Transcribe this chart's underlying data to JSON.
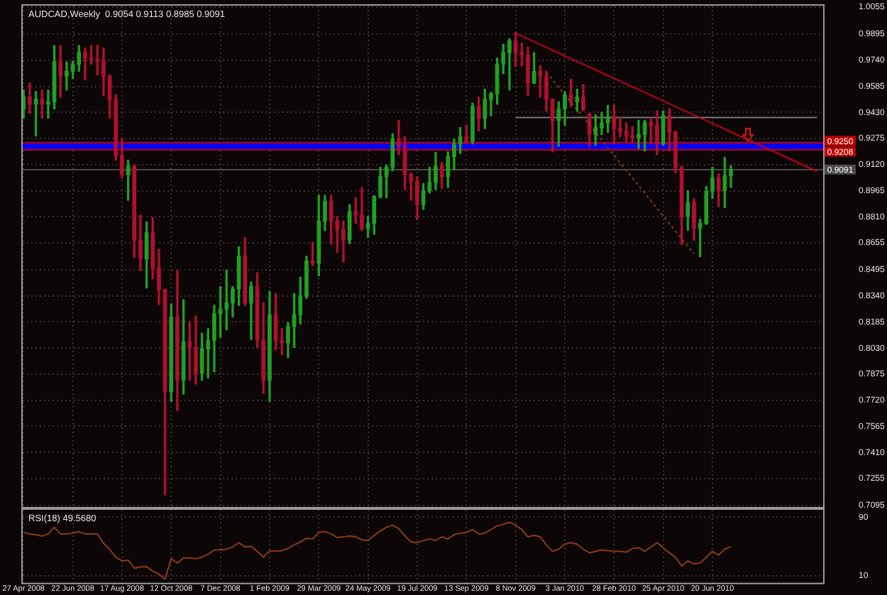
{
  "chart_data": [
    {
      "type": "candlestick",
      "title": "AUDCAD,Weekly  0.9054 0.9113 0.8985 0.9091",
      "series": [
        {
          "x": [
            "2008-04-27",
            "2008-05-04",
            "2008-05-11",
            "2008-05-18",
            "2008-05-25",
            "2008-06-01",
            "2008-06-08",
            "2008-06-15",
            "2008-06-22",
            "2008-06-29",
            "2008-07-06",
            "2008-07-13",
            "2008-07-20",
            "2008-07-27",
            "2008-08-03",
            "2008-08-10",
            "2008-08-17",
            "2008-08-24",
            "2008-08-31",
            "2008-09-07",
            "2008-09-14",
            "2008-09-21",
            "2008-09-28",
            "2008-10-05",
            "2008-10-12",
            "2008-10-19",
            "2008-10-26",
            "2008-11-02",
            "2008-11-09",
            "2008-11-16",
            "2008-11-23",
            "2008-11-30",
            "2008-12-07",
            "2008-12-14",
            "2008-12-21",
            "2008-12-28",
            "2009-01-04",
            "2009-01-11",
            "2009-01-18",
            "2009-01-25",
            "2009-02-01",
            "2009-02-08",
            "2009-02-15",
            "2009-02-22",
            "2009-03-01",
            "2009-03-08",
            "2009-03-15",
            "2009-03-22",
            "2009-03-29",
            "2009-04-05",
            "2009-04-12",
            "2009-04-19",
            "2009-04-26",
            "2009-05-03",
            "2009-05-10",
            "2009-05-17",
            "2009-05-24",
            "2009-05-31",
            "2009-06-07",
            "2009-06-14",
            "2009-06-21",
            "2009-06-28",
            "2009-07-05",
            "2009-07-12",
            "2009-07-19",
            "2009-07-26",
            "2009-08-02",
            "2009-08-09",
            "2009-08-16",
            "2009-08-23",
            "2009-08-30",
            "2009-09-06",
            "2009-09-13",
            "2009-09-20",
            "2009-09-27",
            "2009-10-04",
            "2009-10-11",
            "2009-10-18",
            "2009-10-25",
            "2009-11-01",
            "2009-11-08",
            "2009-11-15",
            "2009-11-22",
            "2009-11-29",
            "2009-12-06",
            "2009-12-13",
            "2009-12-20",
            "2009-12-27",
            "2010-01-03",
            "2010-01-10",
            "2010-01-17",
            "2010-01-24",
            "2010-01-31",
            "2010-02-07",
            "2010-02-14",
            "2010-02-21",
            "2010-02-28",
            "2010-03-07",
            "2010-03-14",
            "2010-03-21",
            "2010-03-28",
            "2010-04-04",
            "2010-04-11",
            "2010-04-18",
            "2010-04-25",
            "2010-05-02",
            "2010-05-09",
            "2010-05-16",
            "2010-05-23",
            "2010-05-30",
            "2010-06-06",
            "2010-06-13",
            "2010-06-20",
            "2010-06-27",
            "2010-07-04",
            "2010-07-11"
          ],
          "ohlc": [
            [
              0.9451,
              0.9563,
              0.9396,
              0.9521
            ],
            [
              0.9521,
              0.9604,
              0.9424,
              0.9479
            ],
            [
              0.9479,
              0.9554,
              0.929,
              0.9507
            ],
            [
              0.9507,
              0.9563,
              0.9396,
              0.9479
            ],
            [
              0.9479,
              0.9563,
              0.9396,
              0.9493
            ],
            [
              0.9493,
              0.9827,
              0.9451,
              0.9729
            ],
            [
              0.9729,
              0.9827,
              0.9521,
              0.9646
            ],
            [
              0.9646,
              0.9729,
              0.9563,
              0.9674
            ],
            [
              0.9674,
              0.9735,
              0.9632,
              0.9716
            ],
            [
              0.9716,
              0.9827,
              0.9674,
              0.9785
            ],
            [
              0.9785,
              0.9813,
              0.9624,
              0.9752
            ],
            [
              0.9752,
              0.9827,
              0.9716,
              0.9743
            ],
            [
              0.9743,
              0.9827,
              0.9652,
              0.9735
            ],
            [
              0.9735,
              0.9813,
              0.9529,
              0.9646
            ],
            [
              0.9646,
              0.9652,
              0.9396,
              0.9507
            ],
            [
              0.9507,
              0.9535,
              0.9146,
              0.9174
            ],
            [
              0.9174,
              0.9276,
              0.904,
              0.906
            ],
            [
              0.906,
              0.9146,
              0.8909,
              0.911
            ],
            [
              0.911,
              0.9118,
              0.857,
              0.8673
            ],
            [
              0.8673,
              0.882,
              0.8492,
              0.856
            ],
            [
              0.856,
              0.8779,
              0.8387,
              0.8715
            ],
            [
              0.8715,
              0.8806,
              0.8442,
              0.8506
            ],
            [
              0.8506,
              0.8617,
              0.8289,
              0.8376
            ],
            [
              0.8376,
              0.838,
              0.7158,
              0.777
            ],
            [
              0.777,
              0.8292,
              0.7714,
              0.8214
            ],
            [
              0.8214,
              0.8492,
              0.7659,
              0.7839
            ],
            [
              0.7839,
              0.8317,
              0.7756,
              0.8067
            ],
            [
              0.8067,
              0.8187,
              0.7839,
              0.8034
            ],
            [
              0.8034,
              0.822,
              0.7817,
              0.7881
            ],
            [
              0.7881,
              0.8117,
              0.7839,
              0.8026
            ],
            [
              0.8026,
              0.8145,
              0.7853,
              0.8076
            ],
            [
              0.8076,
              0.8284,
              0.7889,
              0.8234
            ],
            [
              0.8234,
              0.8395,
              0.8095,
              0.8262
            ],
            [
              0.8262,
              0.8492,
              0.8139,
              0.8298
            ],
            [
              0.8298,
              0.8395,
              0.8214,
              0.8381
            ],
            [
              0.8381,
              0.8631,
              0.8284,
              0.8576
            ],
            [
              0.8576,
              0.8687,
              0.8284,
              0.8298
            ],
            [
              0.8298,
              0.8423,
              0.8081,
              0.8395
            ],
            [
              0.8395,
              0.8478,
              0.8034,
              0.8076
            ],
            [
              0.8076,
              0.8298,
              0.7761,
              0.7839
            ],
            [
              0.7839,
              0.8367,
              0.7714,
              0.8228
            ],
            [
              0.8228,
              0.8353,
              0.802,
              0.8076
            ],
            [
              0.8076,
              0.8145,
              0.7992,
              0.8062
            ],
            [
              0.8062,
              0.8181,
              0.7973,
              0.8159
            ],
            [
              0.8159,
              0.8353,
              0.8034,
              0.8228
            ],
            [
              0.8228,
              0.8451,
              0.8173,
              0.8339
            ],
            [
              0.8339,
              0.8576,
              0.8326,
              0.8548
            ],
            [
              0.8548,
              0.8659,
              0.852,
              0.8534
            ],
            [
              0.8534,
              0.8937,
              0.8459,
              0.8784
            ],
            [
              0.8784,
              0.8937,
              0.8729,
              0.8901
            ],
            [
              0.8901,
              0.8937,
              0.8645,
              0.8784
            ],
            [
              0.8784,
              0.8812,
              0.8598,
              0.8734
            ],
            [
              0.8734,
              0.8784,
              0.8542,
              0.8673
            ],
            [
              0.8673,
              0.8882,
              0.8651,
              0.884
            ],
            [
              0.884,
              0.8923,
              0.877,
              0.882
            ],
            [
              0.882,
              0.8984,
              0.8729,
              0.874
            ],
            [
              0.874,
              0.8812,
              0.8687,
              0.877
            ],
            [
              0.877,
              0.8935,
              0.8706,
              0.893
            ],
            [
              0.893,
              0.9104,
              0.8923,
              0.9048
            ],
            [
              0.9048,
              0.9118,
              0.8923,
              0.9104
            ],
            [
              0.9104,
              0.9304,
              0.9084,
              0.9271
            ],
            [
              0.9271,
              0.9382,
              0.9179,
              0.9229
            ],
            [
              0.9229,
              0.9285,
              0.8972,
              0.906
            ],
            [
              0.906,
              0.9071,
              0.8909,
              0.9021
            ],
            [
              0.9021,
              0.9048,
              0.8793,
              0.8882
            ],
            [
              0.8882,
              0.9007,
              0.8854,
              0.8965
            ],
            [
              0.8965,
              0.9104,
              0.8951,
              0.9015
            ],
            [
              0.9015,
              0.9193,
              0.8972,
              0.911
            ],
            [
              0.911,
              0.9132,
              0.8979,
              0.9048
            ],
            [
              0.9048,
              0.9196,
              0.8984,
              0.9168
            ],
            [
              0.9168,
              0.9271,
              0.909,
              0.9243
            ],
            [
              0.9243,
              0.934,
              0.9187,
              0.9285
            ],
            [
              0.9285,
              0.9354,
              0.9243,
              0.9257
            ],
            [
              0.9257,
              0.9485,
              0.9243,
              0.9465
            ],
            [
              0.9465,
              0.9521,
              0.9321,
              0.9396
            ],
            [
              0.9396,
              0.9568,
              0.9335,
              0.9507
            ],
            [
              0.9507,
              0.9549,
              0.941,
              0.954
            ],
            [
              0.954,
              0.9752,
              0.9479,
              0.9716
            ],
            [
              0.9716,
              0.9835,
              0.966,
              0.9785
            ],
            [
              0.9785,
              0.9868,
              0.9563,
              0.9855
            ],
            [
              0.9855,
              0.9905,
              0.9702,
              0.9785
            ],
            [
              0.9785,
              0.9841,
              0.9707,
              0.9771
            ],
            [
              0.9771,
              0.9818,
              0.9529,
              0.9604
            ],
            [
              0.9604,
              0.9785,
              0.96,
              0.9674
            ],
            [
              0.9674,
              0.9707,
              0.9521,
              0.9646
            ],
            [
              0.9646,
              0.9674,
              0.9438,
              0.9507
            ],
            [
              0.9507,
              0.951,
              0.9196,
              0.9382
            ],
            [
              0.9382,
              0.9493,
              0.9229,
              0.9451
            ],
            [
              0.9451,
              0.9554,
              0.9354,
              0.9535
            ],
            [
              0.9535,
              0.9627,
              0.9465,
              0.9493
            ],
            [
              0.9493,
              0.9568,
              0.9438,
              0.9521
            ],
            [
              0.9521,
              0.9596,
              0.944,
              0.9446
            ],
            [
              0.942,
              0.9424,
              0.9229,
              0.9299
            ],
            [
              0.9299,
              0.9415,
              0.9235,
              0.934
            ],
            [
              0.934,
              0.9429,
              0.9299,
              0.9368
            ],
            [
              0.9368,
              0.9471,
              0.9312,
              0.9401
            ],
            [
              0.9401,
              0.9471,
              0.9243,
              0.9335
            ],
            [
              0.9335,
              0.9401,
              0.9285,
              0.9318
            ],
            [
              0.9318,
              0.9368,
              0.9257,
              0.929
            ],
            [
              0.929,
              0.9346,
              0.9257,
              0.9279
            ],
            [
              0.9279,
              0.9382,
              0.9215,
              0.93
            ],
            [
              0.93,
              0.9382,
              0.9201,
              0.9368
            ],
            [
              0.9368,
              0.9396,
              0.9243,
              0.9354
            ],
            [
              0.9354,
              0.9438,
              0.9179,
              0.9243
            ],
            [
              0.9243,
              0.9438,
              0.9235,
              0.941
            ],
            [
              0.941,
              0.9452,
              0.9202,
              0.9312
            ],
            [
              0.9312,
              0.9318,
              0.9071,
              0.91
            ],
            [
              0.91,
              0.911,
              0.8645,
              0.8812
            ],
            [
              0.8812,
              0.8965,
              0.873,
              0.8895
            ],
            [
              0.8895,
              0.8915,
              0.867,
              0.8743
            ],
            [
              0.8743,
              0.8795,
              0.8573,
              0.877
            ],
            [
              0.877,
              0.899,
              0.8765,
              0.896
            ],
            [
              0.896,
              0.9104,
              0.892,
              0.904
            ],
            [
              0.904,
              0.9065,
              0.887,
              0.8965
            ],
            [
              0.8965,
              0.9163,
              0.8865,
              0.9054
            ],
            [
              0.9054,
              0.9113,
              0.8985,
              0.9091
            ]
          ],
          "colors": [
            "#20a020",
            "#b01030",
            "#20a020",
            "#b01030",
            "#20a020",
            "#20a020",
            "#b01030",
            "#20a020",
            "#20a020",
            "#20a020",
            "#b01030",
            "#b01030",
            "#b01030",
            "#b01030",
            "#b01030",
            "#b01030",
            "#b01030",
            "#20a020",
            "#b01030",
            "#b01030",
            "#20a020",
            "#b01030",
            "#b01030",
            "#b01030",
            "#20a020",
            "#b01030",
            "#20a020",
            "#b01030",
            "#b01030",
            "#20a020",
            "#20a020",
            "#20a020",
            "#20a020",
            "#20a020",
            "#20a020",
            "#20a020",
            "#b01030",
            "#20a020",
            "#b01030",
            "#b01030",
            "#20a020",
            "#b01030",
            "#b01030",
            "#20a020",
            "#20a020",
            "#20a020",
            "#20a020",
            "#b01030",
            "#20a020",
            "#20a020",
            "#b01030",
            "#b01030",
            "#b01030",
            "#20a020",
            "#b01030",
            "#b01030",
            "#20a020",
            "#20a020",
            "#20a020",
            "#20a020",
            "#20a020",
            "#b01030",
            "#b01030",
            "#b01030",
            "#b01030",
            "#20a020",
            "#20a020",
            "#20a020",
            "#b01030",
            "#20a020",
            "#20a020",
            "#20a020",
            "#b01030",
            "#20a020",
            "#b01030",
            "#20a020",
            "#20a020",
            "#20a020",
            "#20a020",
            "#20a020",
            "#b01030",
            "#b01030",
            "#b01030",
            "#20a020",
            "#b01030",
            "#b01030",
            "#b01030",
            "#20a020",
            "#20a020",
            "#b01030",
            "#20a020",
            "#b01030",
            "#b01030",
            "#20a020",
            "#20a020",
            "#20a020",
            "#b01030",
            "#b01030",
            "#b01030",
            "#b01030",
            "#20a020",
            "#20a020",
            "#b01030",
            "#b01030",
            "#20a020",
            "#b01030",
            "#b01030",
            "#b01030",
            "#20a020",
            "#b01030",
            "#20a020",
            "#20a020",
            "#20a020",
            "#b01030",
            "#20a020",
            "#20a020"
          ]
        },
        {
          "type": "line",
          "x": [
            "2009-11-08",
            "2010-10-17"
          ],
          "values": [
            0.99,
            0.908
          ],
          "color": "#c00018"
        },
        {
          "type": "line",
          "x": [
            "2009-12-13",
            "2010-05-30"
          ],
          "values": [
            0.967,
            0.859
          ],
          "color": "#7a3a12",
          "line_style": "dotted"
        },
        {
          "type": "line",
          "x": [
            "2009-11-08",
            "2010-10-17"
          ],
          "values": [
            0.94,
            0.94
          ],
          "color": "#787878"
        }
      ],
      "xlim": [
        "2008-04-26",
        "2010-10-24"
      ],
      "xticks": [
        {
          "value": "2008-04-27",
          "label": null
        },
        {
          "value": "2008-06-22",
          "label": null
        },
        {
          "value": "2008-08-17",
          "label": null
        },
        {
          "value": "2008-10-12",
          "label": null
        },
        {
          "value": "2008-12-07",
          "label": null
        },
        {
          "value": "2009-02-01",
          "label": null
        },
        {
          "value": "2009-03-29",
          "label": null
        },
        {
          "value": "2009-05-24",
          "label": null
        },
        {
          "value": "2009-07-19",
          "label": null
        },
        {
          "value": "2009-09-13",
          "label": null
        },
        {
          "value": "2009-11-08",
          "label": null
        },
        {
          "value": "2010-01-03",
          "label": null
        },
        {
          "value": "2010-02-28",
          "label": null
        },
        {
          "value": "2010-04-25",
          "label": null
        },
        {
          "value": "2010-06-20",
          "label": null
        }
      ],
      "ylim": [
        0.7086,
        1.0064
      ],
      "yticks": [
        1.0055,
        0.9895,
        {
          "value": 0.974,
          "label": "0.9740"
        },
        0.9585,
        {
          "value": 0.943,
          "label": "0.9430"
        },
        0.9275,
        {
          "value": 0.912,
          "label": "0.9120"
        },
        0.8965,
        {
          "value": 0.881,
          "label": "0.8810"
        },
        0.8655,
        0.8495,
        {
          "value": 0.834,
          "label": "0.8340"
        },
        0.8185,
        {
          "value": 0.803,
          "label": "0.8030"
        },
        0.7875,
        {
          "value": 0.772,
          "label": "0.7720"
        },
        0.7565,
        {
          "value": 0.741,
          "label": "0.7410"
        },
        0.7255,
        0.7095
      ],
      "tick_labels": "y",
      "grid": true,
      "ref_lines": [
        {
          "axis": "y",
          "value": 0.925,
          "label": "0.9250",
          "color": "#c00000"
        },
        {
          "axis": "y",
          "value": 0.9208,
          "label": "0.9208",
          "color": "#c00000"
        },
        {
          "axis": "y",
          "value": 0.9091,
          "label": "0.9091",
          "color": "#4a4a4a"
        }
      ],
      "bands": [
        {
          "axis": "y",
          "from": 0.9208,
          "to": 0.925,
          "color": "#0000ff"
        }
      ]
    },
    {
      "type": "line",
      "title": "RSI(18) 49.5680",
      "series": [
        {
          "x": [
            "2008-04-27",
            "2008-05-04",
            "2008-05-11",
            "2008-05-18",
            "2008-05-25",
            "2008-06-01",
            "2008-06-08",
            "2008-06-15",
            "2008-06-22",
            "2008-06-29",
            "2008-07-06",
            "2008-07-13",
            "2008-07-20",
            "2008-07-27",
            "2008-08-03",
            "2008-08-10",
            "2008-08-17",
            "2008-08-24",
            "2008-08-31",
            "2008-09-07",
            "2008-09-14",
            "2008-09-21",
            "2008-09-28",
            "2008-10-05",
            "2008-10-12",
            "2008-10-19",
            "2008-10-26",
            "2008-11-02",
            "2008-11-09",
            "2008-11-16",
            "2008-11-23",
            "2008-11-30",
            "2008-12-07",
            "2008-12-14",
            "2008-12-21",
            "2008-12-28",
            "2009-01-04",
            "2009-01-11",
            "2009-01-18",
            "2009-01-25",
            "2009-02-01",
            "2009-02-08",
            "2009-02-15",
            "2009-02-22",
            "2009-03-01",
            "2009-03-08",
            "2009-03-15",
            "2009-03-22",
            "2009-03-29",
            "2009-04-05",
            "2009-04-12",
            "2009-04-19",
            "2009-04-26",
            "2009-05-03",
            "2009-05-10",
            "2009-05-17",
            "2009-05-24",
            "2009-05-31",
            "2009-06-07",
            "2009-06-14",
            "2009-06-21",
            "2009-06-28",
            "2009-07-05",
            "2009-07-12",
            "2009-07-19",
            "2009-07-26",
            "2009-08-02",
            "2009-08-09",
            "2009-08-16",
            "2009-08-23",
            "2009-08-30",
            "2009-09-06",
            "2009-09-13",
            "2009-09-20",
            "2009-09-27",
            "2009-10-04",
            "2009-10-11",
            "2009-10-18",
            "2009-10-25",
            "2009-11-01",
            "2009-11-08",
            "2009-11-15",
            "2009-11-22",
            "2009-11-29",
            "2009-12-06",
            "2009-12-13",
            "2009-12-20",
            "2009-12-27",
            "2010-01-03",
            "2010-01-10",
            "2010-01-17",
            "2010-01-24",
            "2010-01-31",
            "2010-02-07",
            "2010-02-14",
            "2010-02-21",
            "2010-02-28",
            "2010-03-07",
            "2010-03-14",
            "2010-03-21",
            "2010-03-28",
            "2010-04-04",
            "2010-04-11",
            "2010-04-18",
            "2010-04-25",
            "2010-05-02",
            "2010-05-09",
            "2010-05-16",
            "2010-05-23",
            "2010-05-30",
            "2010-06-06",
            "2010-06-13",
            "2010-06-20",
            "2010-06-27",
            "2010-07-04",
            "2010-07-11"
          ],
          "values": [
            69,
            67,
            66,
            64,
            67,
            76,
            67,
            67,
            68,
            70,
            67,
            67,
            67,
            54,
            46,
            35,
            30,
            31,
            20,
            22,
            22,
            16,
            12,
            5,
            33,
            27,
            34,
            34,
            33,
            35,
            39,
            45,
            45,
            46,
            49,
            55,
            49,
            50,
            43,
            35,
            44,
            43,
            44,
            47,
            52,
            56,
            61,
            60,
            69,
            70,
            67,
            62,
            63,
            64,
            63,
            59,
            58,
            65,
            71,
            76,
            79,
            74,
            64,
            56,
            55,
            58,
            60,
            58,
            63,
            60,
            66,
            68,
            69,
            73,
            67,
            68,
            73,
            78,
            80,
            83,
            79,
            73,
            63,
            65,
            63,
            52,
            43,
            46,
            53,
            55,
            53,
            46,
            41,
            43,
            45,
            44,
            43,
            43,
            42,
            47,
            48,
            43,
            49,
            55,
            48,
            41,
            35,
            23,
            30,
            26,
            27,
            35,
            43,
            38,
            46,
            49.568
          ],
          "color": "#8a3a18"
        }
      ],
      "xlim": [
        "2008-04-26",
        "2010-10-24"
      ],
      "xticks": [
        {
          "value": "2008-04-27",
          "label": "27 Apr 2008"
        },
        {
          "value": "2008-06-22",
          "label": "22 Jun 2008"
        },
        {
          "value": "2008-08-17",
          "label": "17 Aug 2008"
        },
        {
          "value": "2008-10-12",
          "label": "12 Oct 2008"
        },
        {
          "value": "2008-12-07",
          "label": "7 Dec 2008"
        },
        {
          "value": "2009-02-01",
          "label": "1 Feb 2009"
        },
        {
          "value": "2009-03-29",
          "label": "29 Mar 2009"
        },
        {
          "value": "2009-05-24",
          "label": "24 May 2009"
        },
        {
          "value": "2009-07-19",
          "label": "19 Jul 2009"
        },
        {
          "value": "2009-09-13",
          "label": "13 Sep 2009"
        },
        {
          "value": "2009-11-08",
          "label": "8 Nov 2009"
        },
        {
          "value": "2010-01-03",
          "label": "3 Jan 2010"
        },
        {
          "value": "2010-02-28",
          "label": "28 Feb 2010"
        },
        {
          "value": "2010-04-25",
          "label": "25 Apr 2010"
        },
        {
          "value": "2010-06-20",
          "label": "20 Jun 2010"
        }
      ],
      "ylim": [
        0,
        100
      ],
      "yticks": [
        90,
        10
      ],
      "grid": true
    }
  ]
}
